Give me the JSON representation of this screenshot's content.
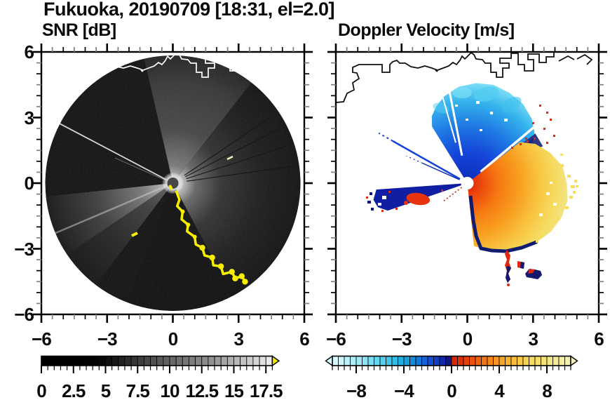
{
  "title": "Fukuoka, 20190709 [18:31, el=2.0]",
  "panels": {
    "snr": {
      "title": "SNR [dB]"
    },
    "velocity": {
      "title": "Doppler Velocity [m/s]"
    }
  },
  "colors": {
    "frame": "#000000",
    "minor_tick_gray": "#808080",
    "coastline_left": "#ffffff",
    "coastline_right": "#111111",
    "hard_target_yellow": "#f8ef00"
  },
  "chart_data": [
    {
      "type": "heatmap",
      "subtype": "doppler-lidar-ppi-scan",
      "title": "SNR [dB]",
      "xlabel": "",
      "ylabel": "",
      "xlim": [
        -6,
        6
      ],
      "ylim": [
        -6,
        6
      ],
      "x_ticks": [
        -6,
        -3,
        0,
        3,
        6
      ],
      "y_ticks": [
        6,
        3,
        0,
        -3,
        -6
      ],
      "minor_tick_step": 0.5,
      "grid": false,
      "colorbar": {
        "range": [
          0,
          18
        ],
        "tick_values": [
          0,
          2.5,
          5,
          7.5,
          10,
          12.5,
          15,
          17.5
        ],
        "cell_step": 0.5,
        "stops": [
          [
            0,
            "#000000"
          ],
          [
            4.5,
            "#020202"
          ],
          [
            9,
            "#565656"
          ],
          [
            13.5,
            "#969696"
          ],
          [
            18,
            "#efefef"
          ]
        ],
        "overflow_color": "#f2e705",
        "orientation": "horizontal-below"
      },
      "scene": {
        "scan_disk_radius": 5.85,
        "radar_center": [
          0,
          0
        ],
        "features": [
          {
            "name": "bright-snr-sector-east",
            "azimuth_deg": [
              -60,
              52
            ],
            "desc": "high SNR near radar fading with range"
          },
          {
            "name": "bright-snr-sector-north",
            "azimuth_deg": [
              52,
              103
            ],
            "desc": "moderate SNR fan"
          },
          {
            "name": "bright-snr-wedge-wsw",
            "azimuth_deg": [
              186,
              214
            ],
            "desc": "moderate SNR wedge to disk edge"
          },
          {
            "name": "dim-snr-wedge-sw",
            "azimuth_deg": [
              214,
              233
            ],
            "desc": "weak SNR fan"
          },
          {
            "name": "blocked-sector-nw",
            "azimuth_deg": [
              103,
              151
            ],
            "desc": "no signal, black"
          },
          {
            "name": "blocked-sector-ssw",
            "azimuth_deg": [
              233,
              249
            ],
            "desc": "no signal, black"
          },
          {
            "name": "blocked-sector-south",
            "desc": "black beyond hard-target line toward SSE"
          },
          {
            "name": "hard-target-line",
            "color": "#f8ef00",
            "desc": "saturated SNR along terrain/coast to the SSE",
            "points": [
              [
                0.15,
                -0.35
              ],
              [
                0.3,
                -0.75
              ],
              [
                0.2,
                -1.05
              ],
              [
                0.45,
                -1.3
              ],
              [
                0.4,
                -1.65
              ],
              [
                0.7,
                -1.9
              ],
              [
                0.65,
                -2.2
              ],
              [
                1.0,
                -2.45
              ],
              [
                1.05,
                -2.8
              ],
              [
                1.35,
                -2.95
              ],
              [
                1.45,
                -3.3
              ],
              [
                1.8,
                -3.4
              ],
              [
                1.85,
                -3.75
              ],
              [
                2.2,
                -3.8
              ],
              [
                2.3,
                -4.15
              ],
              [
                2.7,
                -4.05
              ],
              [
                2.85,
                -4.35
              ],
              [
                3.15,
                -4.25
              ],
              [
                3.3,
                -4.5
              ]
            ]
          },
          {
            "name": "coastline-overlay",
            "color": "#ffffff",
            "desc": "coastline drawn in white across north of disk"
          }
        ]
      }
    },
    {
      "type": "heatmap",
      "subtype": "doppler-lidar-ppi-scan",
      "title": "Doppler Velocity [m/s]",
      "xlabel": "",
      "ylabel": "",
      "xlim": [
        -6,
        6
      ],
      "ylim": [
        -6,
        6
      ],
      "x_ticks": [
        -6,
        -3,
        0,
        3,
        6
      ],
      "y_ticks": [
        6,
        3,
        0,
        -3,
        -6
      ],
      "minor_tick_step": 0.5,
      "grid": false,
      "colorbar": {
        "range": [
          -10,
          10
        ],
        "tick_values": [
          -8,
          -4,
          0,
          4,
          8
        ],
        "cell_step": 0.5,
        "stops": [
          [
            -10,
            "#dafdff"
          ],
          [
            -9,
            "#c2f3fb"
          ],
          [
            -8,
            "#a6ecf8"
          ],
          [
            -7,
            "#83e0f4"
          ],
          [
            -6,
            "#5cd3f0"
          ],
          [
            -5,
            "#38c3ea"
          ],
          [
            -4,
            "#1ba8e0"
          ],
          [
            -3,
            "#1282d8"
          ],
          [
            -2,
            "#1458d8"
          ],
          [
            -1,
            "#1334c0"
          ],
          [
            -0.5,
            "#101c94"
          ],
          [
            -0.01,
            "#0a1060"
          ],
          [
            0.01,
            "#d81e08"
          ],
          [
            1,
            "#e43508"
          ],
          [
            2,
            "#ef5a0e"
          ],
          [
            3,
            "#f67d14"
          ],
          [
            4,
            "#f89e22"
          ],
          [
            5,
            "#f8b833"
          ],
          [
            6,
            "#f8cf49"
          ],
          [
            7,
            "#f6dd62"
          ],
          [
            8,
            "#f4e67e"
          ],
          [
            9,
            "#f3ec9e"
          ],
          [
            10,
            "#f2f0bc"
          ]
        ],
        "arrows": "both-ends",
        "orientation": "horizontal-below"
      },
      "scene": {
        "features": [
          {
            "name": "negative-velocity-fan-north",
            "azimuth_deg": [
              28,
              122
            ],
            "value_range_ms": [
              -8,
              -1
            ],
            "desc": "blue fan, cyan (weaker negative) at outer north edge"
          },
          {
            "name": "negative-velocity-wedge-west",
            "azimuth_deg": [
              184,
              199
            ],
            "value_ms": -9,
            "desc": "dark navy wedge with embedded positive (red) patch near (-2.3,-0.7)"
          },
          {
            "name": "thin-negative-rays-wnw",
            "azimuth_deg": [
              150,
              157
            ],
            "desc": "narrow blue radial streaks"
          },
          {
            "name": "thin-positive-ray-sw",
            "azimuth_deg": [
              217,
              217
            ],
            "desc": "short dotted red radial streak"
          },
          {
            "name": "positive-velocity-sector-east-south",
            "azimuth_deg": [
              -84,
              38
            ],
            "value_range_ms": [
              1,
              9
            ],
            "desc": "red near radar, orange to yellow outward toward ESE; navy fringe on SW edge"
          },
          {
            "name": "mixed-velocity-spots-south",
            "location": [
              [
                1.85,
                -3.8
              ],
              [
                2.45,
                -3.7
              ],
              [
                3.0,
                -4.15
              ]
            ],
            "desc": "isolated red/navy patches"
          },
          {
            "name": "coastline-overlay",
            "color": "#111111",
            "desc": "coastline drawn in black across north"
          }
        ]
      }
    }
  ]
}
